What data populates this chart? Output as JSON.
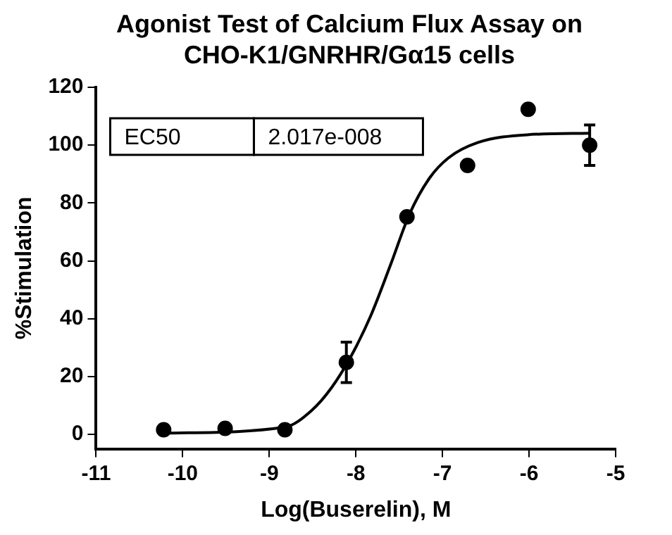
{
  "chart_data": {
    "type": "scatter",
    "title": "Agonist Test of Calcium Flux Assay on CHO-K1/GNRHR/Gα15 cells",
    "xlabel": "Log(Buserelin), M",
    "ylabel": "%Stimulation",
    "xlim": [
      -11,
      -5
    ],
    "xticks": [
      -11,
      -10,
      -9,
      -8,
      -7,
      -6,
      -5
    ],
    "ylim": [
      -5,
      120
    ],
    "yticks": [
      0,
      20,
      40,
      60,
      80,
      100,
      120
    ],
    "grid": false,
    "legend": false,
    "marker": "circle",
    "series": [
      {
        "color": "#000000",
        "x": [
          -10.22,
          -9.51,
          -8.82,
          -8.11,
          -7.41,
          -6.71,
          -6.01,
          -5.3
        ],
        "values": [
          1.6,
          2.1,
          1.6,
          24.9,
          75.2,
          93,
          112.4,
          100
        ],
        "errors": [
          null,
          null,
          null,
          7,
          null,
          null,
          null,
          7
        ]
      },
      {
        "type": "line",
        "color": "#000000",
        "marker": "none",
        "x": [
          -10.22,
          -8.82,
          -8.51,
          -8.28,
          -8.06,
          -7.83,
          -7.6,
          -7.38,
          -7.15,
          -6.93,
          -6.59,
          -6.02,
          -5.3
        ],
        "values": [
          0.4,
          2.5,
          8.3,
          16.2,
          26.8,
          40.9,
          58.6,
          76.2,
          88.6,
          95.6,
          100.9,
          103.6,
          104.1
        ]
      }
    ],
    "annotations": [
      "EC50",
      "2.017e-008"
    ]
  }
}
